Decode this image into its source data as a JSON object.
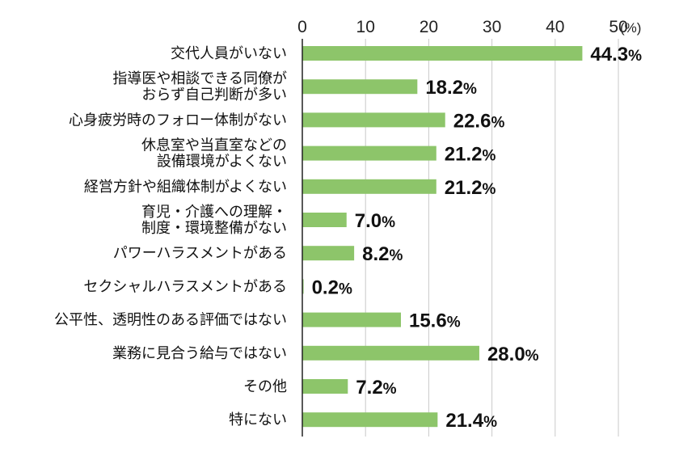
{
  "chart_data": {
    "type": "bar",
    "orientation": "horizontal",
    "title": "",
    "xlabel": "",
    "ylabel": "",
    "unit": "(%)",
    "xlim": [
      0,
      50
    ],
    "xticks": [
      "0",
      "10",
      "20",
      "30",
      "40",
      "50"
    ],
    "grid": true,
    "bar_color": "#8dc56a",
    "grid_color": "#c9c9c9",
    "categories": [
      [
        "交代人員がいない"
      ],
      [
        "指導医や相談できる同僚が",
        "おらず自己判断が多い"
      ],
      [
        "心身疲労時のフォロー体制がない"
      ],
      [
        "休息室や当直室などの",
        "設備環境がよくない"
      ],
      [
        "経営方針や組織体制がよくない"
      ],
      [
        "育児・介護への理解・",
        "制度・環境整備がない"
      ],
      [
        "パワーハラスメントがある"
      ],
      [
        "セクシャルハラスメントがある"
      ],
      [
        "公平性、透明性のある評価ではない"
      ],
      [
        "業務に見合う給与ではない"
      ],
      [
        "その他"
      ],
      [
        "特にない"
      ]
    ],
    "values": [
      44.3,
      18.2,
      22.6,
      21.2,
      21.2,
      7.0,
      8.2,
      0.2,
      15.6,
      28.0,
      7.2,
      21.4
    ],
    "value_labels": [
      "44.3",
      "18.2",
      "22.6",
      "21.2",
      "21.2",
      "7.0",
      "8.2",
      "0.2",
      "15.6",
      "28.0",
      "7.2",
      "21.4"
    ],
    "value_suffix": "%"
  }
}
